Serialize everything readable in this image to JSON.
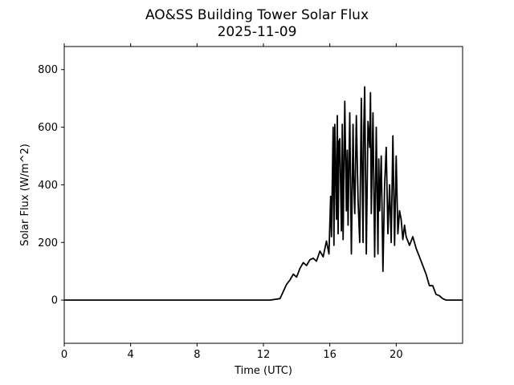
{
  "chart_data": {
    "type": "line",
    "title": "AO&SS Building Tower Solar Flux",
    "subtitle": "2025-11-09",
    "xlabel": "Time (UTC)",
    "ylabel": "Solar Flux (W/m^2)",
    "xlim": [
      0,
      24
    ],
    "ylim": [
      -150,
      880
    ],
    "xticks": [
      0,
      4,
      8,
      12,
      16,
      20
    ],
    "yticks": [
      0,
      200,
      400,
      600,
      800
    ],
    "grid": false,
    "legend": "none",
    "line_color": "#000000",
    "series": [
      {
        "x": [
          0,
          4,
          8,
          12,
          12.4,
          13.0,
          13.2,
          13.4,
          13.6,
          13.8,
          14.0,
          14.2,
          14.4,
          14.6,
          14.8,
          15.0,
          15.2,
          15.4,
          15.6,
          15.8,
          15.95,
          16.05,
          16.1,
          16.2,
          16.25,
          16.3,
          16.4,
          16.45,
          16.5,
          16.55,
          16.6,
          16.7,
          16.75,
          16.8,
          16.9,
          17.0,
          17.05,
          17.1,
          17.2,
          17.3,
          17.4,
          17.45,
          17.5,
          17.6,
          17.7,
          17.8,
          17.9,
          18.0,
          18.05,
          18.1,
          18.2,
          18.3,
          18.4,
          18.45,
          18.5,
          18.6,
          18.7,
          18.8,
          18.9,
          18.95,
          19.0,
          19.1,
          19.2,
          19.3,
          19.4,
          19.5,
          19.6,
          19.7,
          19.8,
          19.9,
          20.0,
          20.1,
          20.2,
          20.3,
          20.4,
          20.5,
          20.6,
          20.8,
          21.0,
          21.2,
          21.4,
          21.6,
          21.8,
          22.0,
          22.2,
          22.4,
          22.6,
          22.8,
          23.0,
          24.0
        ],
        "y": [
          0,
          0,
          0,
          0,
          0,
          5,
          30,
          55,
          70,
          90,
          80,
          110,
          130,
          120,
          140,
          145,
          135,
          170,
          150,
          205,
          160,
          360,
          220,
          600,
          190,
          610,
          280,
          640,
          230,
          550,
          560,
          240,
          610,
          210,
          690,
          310,
          520,
          260,
          650,
          160,
          610,
          400,
          300,
          640,
          350,
          200,
          700,
          200,
          600,
          740,
          160,
          620,
          530,
          720,
          300,
          650,
          150,
          600,
          160,
          490,
          310,
          500,
          100,
          400,
          530,
          230,
          400,
          200,
          570,
          190,
          500,
          230,
          310,
          280,
          210,
          260,
          220,
          190,
          220,
          180,
          150,
          120,
          90,
          50,
          50,
          20,
          15,
          5,
          0,
          0
        ]
      }
    ]
  }
}
